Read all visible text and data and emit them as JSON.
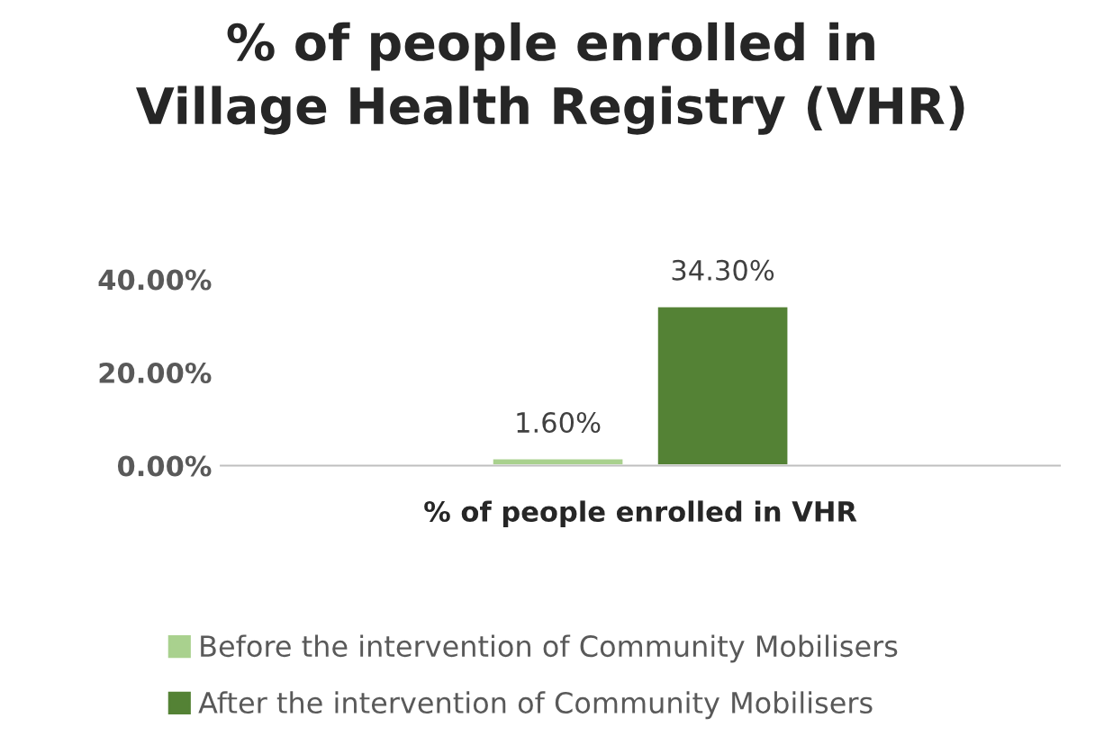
{
  "chart_data": {
    "type": "bar",
    "title": "% of people enrolled in\nVillage Health Registry (VHR)",
    "categories": [
      "% of people enrolled in VHR"
    ],
    "series": [
      {
        "name": "Before the intervention of Community Mobilisers",
        "color": "#a9d18e",
        "values": [
          1.6
        ],
        "value_labels": [
          "1.60%"
        ]
      },
      {
        "name": "After the intervention of Community Mobilisers",
        "color": "#548235",
        "values": [
          34.3
        ],
        "value_labels": [
          "34.30%"
        ]
      }
    ],
    "ylim": [
      0,
      40
    ],
    "yticks": [
      {
        "value": 0,
        "label": "0.00%"
      },
      {
        "value": 20,
        "label": "20.00%"
      },
      {
        "value": 40,
        "label": "40.00%"
      }
    ],
    "grid": false,
    "legend": "bottom"
  }
}
